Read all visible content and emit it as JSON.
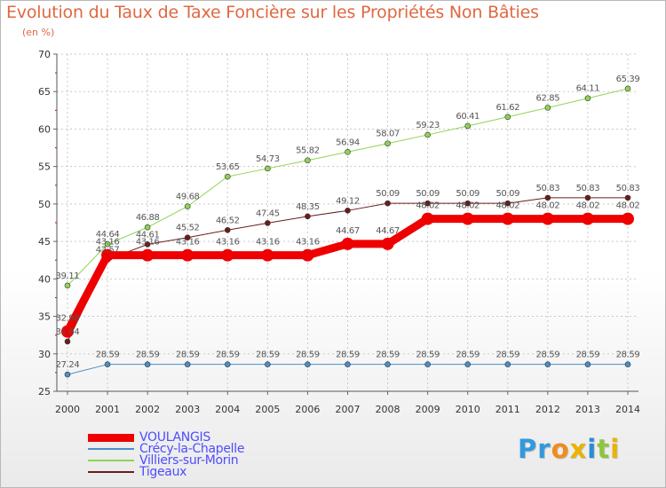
{
  "title": "Evolution du Taux de Taxe Foncière sur les Propriétés Non Bâties",
  "unit": "(en %)",
  "logo": {
    "letters": [
      "P",
      "r",
      "o",
      "x",
      "i",
      "t",
      "i"
    ],
    "colors": [
      "#3399dd",
      "#3399dd",
      "#f08c1e",
      "#e8b400",
      "#2a8cd8",
      "#8cc63f",
      "#e8b400"
    ]
  },
  "chart_data": {
    "type": "line",
    "x": [
      2000,
      2001,
      2002,
      2003,
      2004,
      2005,
      2006,
      2007,
      2008,
      2009,
      2010,
      2011,
      2012,
      2013,
      2014
    ],
    "ylim": [
      25,
      70
    ],
    "yticks": [
      25,
      30,
      35,
      40,
      45,
      50,
      55,
      60,
      65,
      70
    ],
    "grid": true,
    "series": [
      {
        "name": "Villiers-sur-Morin",
        "color": "#8fd452",
        "width": 1,
        "marker": 3,
        "values": [
          39.11,
          44.64,
          46.88,
          49.68,
          53.65,
          54.73,
          55.82,
          56.94,
          58.07,
          59.23,
          60.41,
          61.62,
          62.85,
          64.11,
          65.39
        ],
        "labels": [
          "39.11",
          "44.64",
          "46.88",
          "49.68",
          "53.65",
          "54.73",
          "55.82",
          "56.94",
          "58.07",
          "59.23",
          "60.41",
          "61.62",
          "62.85",
          "64.11",
          "65.39"
        ]
      },
      {
        "name": "Tigeaux",
        "color": "#6b1c1c",
        "width": 1,
        "marker": 3,
        "values": [
          31.64,
          42.57,
          44.61,
          45.52,
          46.52,
          47.45,
          48.35,
          49.12,
          50.09,
          50.09,
          50.09,
          50.09,
          50.83,
          50.83,
          50.83
        ],
        "labels": [
          "31.64",
          "42.57",
          "44.61",
          "45.52",
          "46.52",
          "47.45",
          "48.35",
          "49.12",
          "50.09",
          "50.09",
          "50.09",
          "50.09",
          "50.83",
          "50.83",
          "50.83"
        ]
      },
      {
        "name": "Crécy-la-Chapelle",
        "color": "#4a8fc8",
        "width": 1,
        "marker": 3,
        "values": [
          27.24,
          28.59,
          28.59,
          28.59,
          28.59,
          28.59,
          28.59,
          28.59,
          28.59,
          28.59,
          28.59,
          28.59,
          28.59,
          28.59,
          28.59
        ],
        "labels": [
          "27.24",
          "28.59",
          "28.59",
          "28.59",
          "28.59",
          "28.59",
          "28.59",
          "28.59",
          "28.59",
          "28.59",
          "28.59",
          "28.59",
          "28.59",
          "28.59",
          "28.59"
        ]
      },
      {
        "name": "VOULANGIS",
        "color": "#ee0000",
        "width": 9,
        "marker": 7,
        "values": [
          32.98,
          43.16,
          43.16,
          43.16,
          43.16,
          43.16,
          43.16,
          44.67,
          44.67,
          48.02,
          48.02,
          48.02,
          48.02,
          48.02,
          48.02
        ],
        "labels": [
          "32.98",
          "43.16",
          "43.16",
          "43.16",
          "43.16",
          "43.16",
          "43.16",
          "44.67",
          "44.67",
          "48.02",
          "48.02",
          "48.02",
          "48.02",
          "48.02",
          "48.02"
        ]
      }
    ],
    "legend": [
      "VOULANGIS",
      "Crécy-la-Chapelle",
      "Villiers-sur-Morin",
      "Tigeaux"
    ]
  }
}
